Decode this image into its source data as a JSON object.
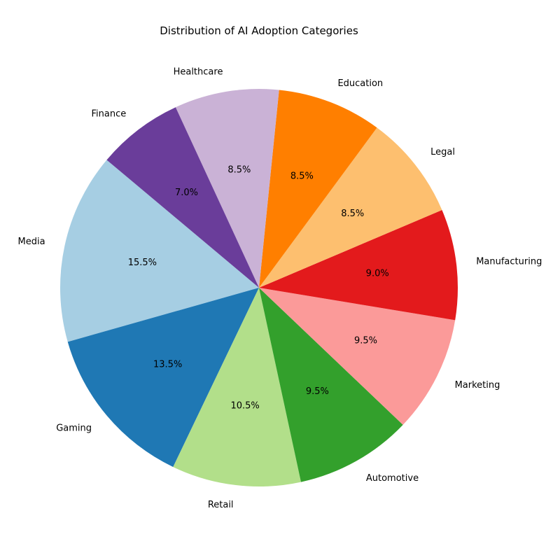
{
  "chart_data": {
    "type": "pie",
    "title": "Distribution of AI Adoption Categories",
    "autopct_format": "{:.1f}%",
    "start_angle_deg": 140,
    "direction": "counterclockwise",
    "categories": [
      "Media",
      "Gaming",
      "Retail",
      "Automotive",
      "Marketing",
      "Manufacturing",
      "Legal",
      "Education",
      "Healthcare",
      "Finance"
    ],
    "values": [
      15.5,
      13.5,
      10.5,
      9.5,
      9.5,
      9.0,
      8.5,
      8.5,
      8.5,
      7.0
    ],
    "colors": [
      "#a6cee3",
      "#1f78b4",
      "#b2df8a",
      "#33a02c",
      "#fb9a99",
      "#e31a1c",
      "#fdbf6f",
      "#ff7f00",
      "#cab2d6",
      "#6a3d9a"
    ]
  }
}
